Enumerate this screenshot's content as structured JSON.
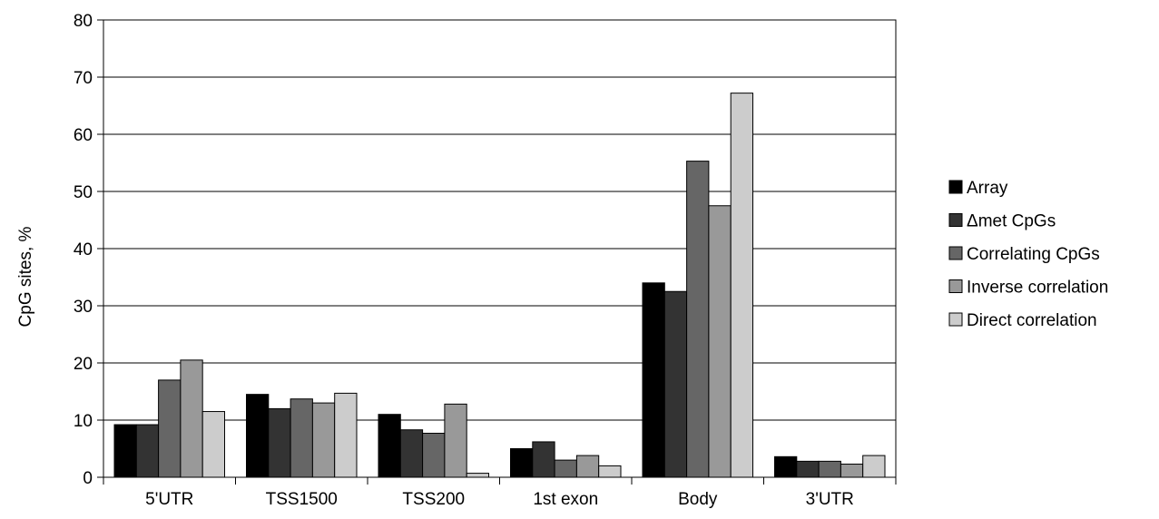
{
  "chart_data": {
    "type": "bar",
    "title": "",
    "xlabel": "",
    "ylabel": "CpG sites, %",
    "ylim": [
      0,
      80
    ],
    "yticks": [
      0,
      10,
      20,
      30,
      40,
      50,
      60,
      70,
      80
    ],
    "grid": true,
    "legend_position": "right",
    "categories": [
      "5'UTR",
      "TSS1500",
      "TSS200",
      "1st exon",
      "Body",
      "3'UTR"
    ],
    "series": [
      {
        "name": "Array",
        "color": "#000000",
        "values": [
          9.2,
          14.5,
          11.0,
          5.0,
          34.0,
          3.6
        ]
      },
      {
        "name": "Δmet CpGs",
        "color": "#333333",
        "values": [
          9.2,
          12.0,
          8.3,
          6.2,
          32.5,
          2.8
        ]
      },
      {
        "name": "Correlating CpGs",
        "color": "#666666",
        "values": [
          17.0,
          13.7,
          7.7,
          3.0,
          55.3,
          2.8
        ]
      },
      {
        "name": "Inverse correlation",
        "color": "#999999",
        "values": [
          20.5,
          13.0,
          12.8,
          3.8,
          47.5,
          2.3
        ]
      },
      {
        "name": "Direct correlation",
        "color": "#cccccc",
        "values": [
          11.5,
          14.7,
          0.7,
          2.0,
          67.2,
          3.8
        ]
      }
    ]
  }
}
